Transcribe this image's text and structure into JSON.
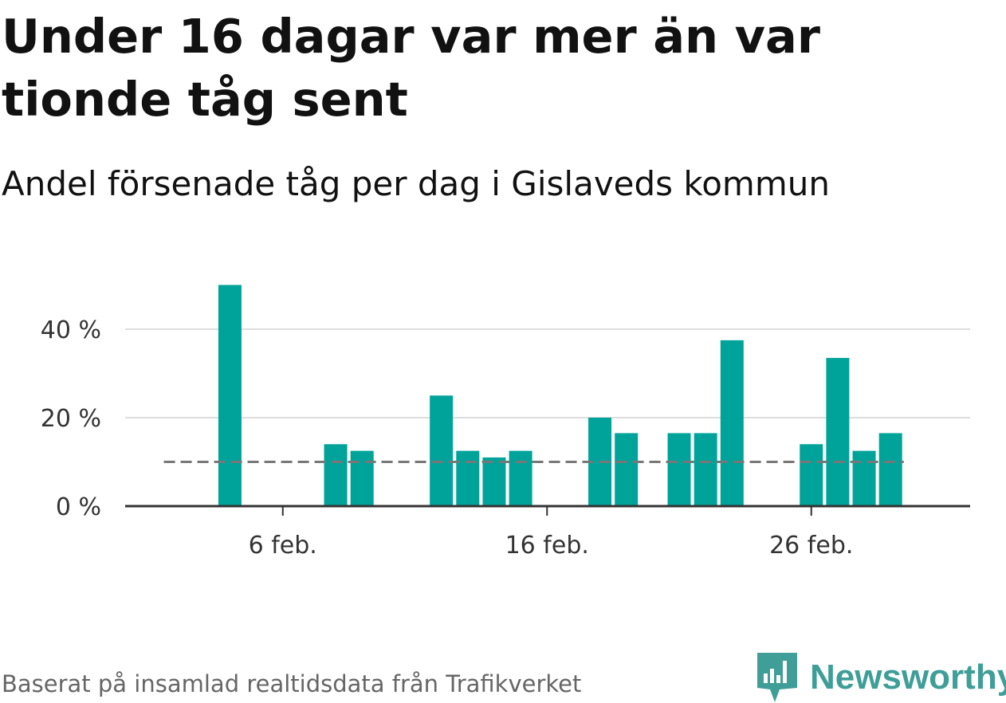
{
  "title": "Under 16 dagar var mer än var tionde tåg sent",
  "subtitle": "Andel försenade tåg per dag i Gislaveds kommun",
  "source": "Baserat på insamlad realtidsdata från Trafikverket",
  "brand": {
    "name": "Newsworthy",
    "icon": "newsworthy-logo-icon"
  },
  "colors": {
    "bar": "#00a39a",
    "reference_line": "#777777",
    "axis": "#333333",
    "grid": "#dddddd",
    "brand": "#3f9e97",
    "text": "#111111",
    "muted": "#666666"
  },
  "chart_data": {
    "type": "bar",
    "x_unit": "day",
    "categories": [
      "1 feb.",
      "2 feb.",
      "3 feb.",
      "4 feb.",
      "5 feb.",
      "6 feb.",
      "7 feb.",
      "8 feb.",
      "9 feb.",
      "10 feb.",
      "11 feb.",
      "12 feb.",
      "13 feb.",
      "14 feb.",
      "15 feb.",
      "16 feb.",
      "17 feb.",
      "18 feb.",
      "19 feb.",
      "20 feb.",
      "21 feb.",
      "22 feb.",
      "23 feb.",
      "24 feb.",
      "25 feb.",
      "26 feb.",
      "27 feb.",
      "28 feb.",
      "29 feb."
    ],
    "values": [
      null,
      null,
      null,
      50,
      null,
      null,
      null,
      14,
      12.5,
      null,
      null,
      25,
      12.5,
      11,
      12.5,
      null,
      null,
      20,
      16.5,
      null,
      16.5,
      16.5,
      37.5,
      null,
      null,
      14,
      33.5,
      12.5,
      16.5
    ],
    "reference_line": {
      "value": 10,
      "from": "2 feb.",
      "to": "29 feb."
    },
    "x_ticks": [
      "6 feb.",
      "16 feb.",
      "26 feb."
    ],
    "y_ticks": [
      0,
      20,
      40
    ],
    "y_tick_labels": [
      "0 %",
      "20 %",
      "40 %"
    ],
    "ylim": [
      0,
      50
    ],
    "grid": true,
    "legend": "none",
    "xlabel": "",
    "ylabel": ""
  }
}
